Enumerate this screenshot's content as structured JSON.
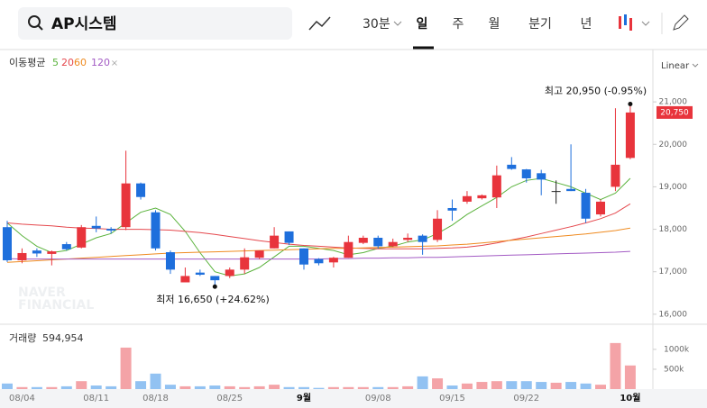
{
  "toolbar": {
    "search": "AP시스템",
    "interval": "30분",
    "periods": [
      "일",
      "주",
      "월",
      "분기",
      "년"
    ],
    "selected_period": "일",
    "scale": "Linear"
  },
  "watermark": [
    "NAVER",
    "FINANCIAL"
  ],
  "chart_data": [
    {
      "type": "candlestick",
      "categories": [
        null,
        "08/04",
        null,
        null,
        null,
        null,
        "08/11",
        null,
        null,
        null,
        "08/18",
        null,
        null,
        null,
        null,
        "08/25",
        null,
        null,
        null,
        null,
        "9월",
        null,
        null,
        null,
        null,
        "09/08",
        null,
        null,
        null,
        null,
        "09/15",
        null,
        null,
        null,
        null,
        "09/22",
        null,
        null,
        null,
        null,
        null,
        null,
        "10월"
      ],
      "open": [
        18050,
        17270,
        17500,
        17420,
        17650,
        17570,
        18080,
        18010,
        18050,
        19080,
        18400,
        17460,
        16750,
        16980,
        16900,
        16900,
        17050,
        17330,
        17550,
        17950,
        17550,
        17300,
        17220,
        17330,
        17680,
        17800,
        17600,
        17750,
        17850,
        17750,
        18500,
        18650,
        18730,
        18750,
        19520,
        19410,
        19320,
        18900,
        18950,
        18860,
        18350,
        19000,
        19680
      ],
      "high": [
        18200,
        17550,
        17550,
        17500,
        17700,
        18100,
        18300,
        18050,
        19850,
        19100,
        18450,
        17500,
        17100,
        17050,
        16900,
        17100,
        17550,
        17500,
        18050,
        17950,
        17550,
        17320,
        17350,
        17850,
        17850,
        17850,
        17780,
        17900,
        17880,
        18450,
        18700,
        18900,
        18820,
        19500,
        19700,
        19420,
        19400,
        19150,
        20000,
        18950,
        18700,
        20850,
        20950
      ],
      "low": [
        17230,
        17200,
        17350,
        17150,
        17500,
        17550,
        17930,
        17900,
        17980,
        18700,
        17500,
        16950,
        16750,
        16900,
        16650,
        16850,
        16950,
        17300,
        17550,
        17630,
        17050,
        17150,
        17100,
        17330,
        17650,
        17550,
        17580,
        17700,
        17400,
        17700,
        18200,
        18600,
        18700,
        18500,
        19400,
        19100,
        18800,
        18600,
        18900,
        18150,
        18300,
        18900,
        19650
      ],
      "close": [
        17270,
        17440,
        17430,
        17480,
        17530,
        18050,
        18020,
        17970,
        19080,
        18760,
        17550,
        17050,
        16900,
        16930,
        16800,
        17050,
        17340,
        17500,
        17850,
        17680,
        17170,
        17200,
        17330,
        17700,
        17800,
        17600,
        17700,
        17800,
        17700,
        18250,
        18440,
        18780,
        18800,
        19270,
        19420,
        19200,
        19170,
        18900,
        18900,
        18250,
        18650,
        19520,
        20750
      ],
      "up_color": "#e8343c",
      "down_color": "#1e6fdc",
      "flat_color": "#222222",
      "moving_averages": {
        "label": "이동평균",
        "series": [
          {
            "name": "5",
            "color": "#5bb33d",
            "values": [
              18150,
              17850,
              17600,
              17450,
              17500,
              17650,
              17800,
              17900,
              18150,
              18400,
              18500,
              18350,
              17950,
              17450,
              17000,
              16900,
              16950,
              17100,
              17350,
              17600,
              17600,
              17550,
              17500,
              17400,
              17450,
              17550,
              17600,
              17700,
              17750,
              17900,
              18100,
              18350,
              18550,
              18750,
              19000,
              19150,
              19200,
              19100,
              19000,
              18850,
              18700,
              18850,
              19200
            ]
          },
          {
            "name": "20",
            "color": "#e5484d",
            "values": [
              18150,
              18120,
              18100,
              18080,
              18050,
              18030,
              18020,
              18000,
              18000,
              18000,
              17990,
              17980,
              17950,
              17920,
              17880,
              17830,
              17780,
              17730,
              17690,
              17650,
              17620,
              17600,
              17580,
              17560,
              17550,
              17540,
              17540,
              17540,
              17540,
              17550,
              17560,
              17580,
              17620,
              17680,
              17750,
              17820,
              17900,
              17980,
              18060,
              18150,
              18250,
              18380,
              18600
            ]
          },
          {
            "name": "60",
            "color": "#ef8a1f",
            "values": [
              17220,
              17240,
              17260,
              17280,
              17300,
              17320,
              17340,
              17360,
              17380,
              17400,
              17420,
              17440,
              17450,
              17460,
              17470,
              17480,
              17490,
              17500,
              17510,
              17520,
              17530,
              17540,
              17550,
              17550,
              17560,
              17570,
              17580,
              17590,
              17600,
              17610,
              17630,
              17650,
              17680,
              17710,
              17740,
              17770,
              17800,
              17830,
              17860,
              17890,
              17930,
              17970,
              18030
            ]
          },
          {
            "name": "120",
            "color": "#a35bc4",
            "values": [
              17310,
              17300,
              17300,
              17300,
              17300,
              17300,
              17300,
              17300,
              17300,
              17300,
              17300,
              17300,
              17300,
              17300,
              17300,
              17300,
              17300,
              17300,
              17300,
              17300,
              17300,
              17300,
              17310,
              17310,
              17320,
              17320,
              17330,
              17330,
              17340,
              17340,
              17350,
              17360,
              17370,
              17380,
              17390,
              17400,
              17410,
              17420,
              17430,
              17440,
              17450,
              17460,
              17480
            ]
          }
        ]
      },
      "ylim": [
        15870,
        22190
      ],
      "yticks": [
        {
          "value": 16000,
          "label": "16,000"
        },
        {
          "value": 17000,
          "label": "17,000"
        },
        {
          "value": 18000,
          "label": "18,000"
        },
        {
          "value": 19000,
          "label": "19,000"
        },
        {
          "value": 20000,
          "label": "20,000"
        },
        {
          "value": 21000,
          "label": "21,000"
        }
      ],
      "last_price": {
        "value": 20750,
        "label": "20,750"
      },
      "annotations": [
        {
          "text": "최고 20,950 (-0.95%)",
          "index": 42,
          "value": 20950
        },
        {
          "text": "최저 16,650 (+24.62%)",
          "index": 14,
          "value": 16650
        }
      ]
    },
    {
      "type": "bar",
      "label": "거래량",
      "current": {
        "value": 594954,
        "label": "594,954"
      },
      "values": [
        140000,
        50000,
        50000,
        50000,
        70000,
        200000,
        90000,
        70000,
        1045000,
        200000,
        390000,
        110000,
        70000,
        70000,
        90000,
        70000,
        50000,
        70000,
        110000,
        50000,
        50000,
        30000,
        50000,
        50000,
        50000,
        50000,
        50000,
        70000,
        320000,
        270000,
        90000,
        140000,
        180000,
        200000,
        200000,
        200000,
        180000,
        160000,
        180000,
        140000,
        110000,
        1160000,
        594954
      ],
      "up_color": "#f4a3a7",
      "down_color": "#92c2f2",
      "ylim": [
        0,
        1520000
      ],
      "yticks": [
        {
          "value": 500000,
          "label": "500k"
        },
        {
          "value": 1000000,
          "label": "1000k"
        }
      ]
    }
  ]
}
